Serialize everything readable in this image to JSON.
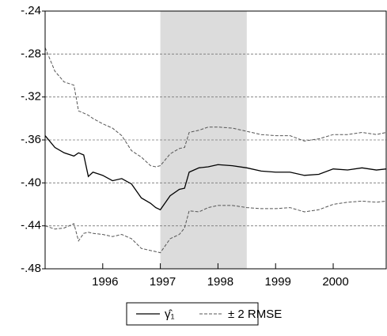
{
  "chart_data": {
    "type": "line",
    "x": [
      1995.0,
      1995.17,
      1995.33,
      1995.5,
      1995.58,
      1995.67,
      1995.75,
      1995.83,
      1996.0,
      1996.17,
      1996.33,
      1996.5,
      1996.67,
      1996.83,
      1996.92,
      1997.0,
      1997.17,
      1997.33,
      1997.42,
      1997.5,
      1997.67,
      1997.83,
      1998.0,
      1998.25,
      1998.5,
      1998.75,
      1999.0,
      1999.25,
      1999.5,
      1999.75,
      2000.0,
      2000.25,
      2000.5,
      2000.75,
      2000.92
    ],
    "series": [
      {
        "name": "γ̂₁",
        "color": "#000000",
        "dashed": false,
        "values": [
          -0.356,
          -0.367,
          -0.372,
          -0.375,
          -0.372,
          -0.374,
          -0.394,
          -0.39,
          -0.393,
          -0.398,
          -0.396,
          -0.401,
          -0.414,
          -0.419,
          -0.423,
          -0.425,
          -0.412,
          -0.406,
          -0.405,
          -0.39,
          -0.386,
          -0.385,
          -0.383,
          -0.384,
          -0.386,
          -0.389,
          -0.39,
          -0.39,
          -0.393,
          -0.392,
          -0.387,
          -0.388,
          -0.386,
          -0.388,
          -0.387
        ]
      },
      {
        "name": "± 2 RMSE",
        "color": "#555555",
        "dashed": true,
        "values": [
          -0.274,
          -0.296,
          -0.306,
          -0.309,
          -0.333,
          -0.335,
          -0.337,
          -0.34,
          -0.345,
          -0.349,
          -0.356,
          -0.37,
          -0.376,
          -0.384,
          -0.385,
          -0.384,
          -0.373,
          -0.368,
          -0.367,
          -0.353,
          -0.351,
          -0.348,
          -0.348,
          -0.349,
          -0.352,
          -0.355,
          -0.356,
          -0.356,
          -0.361,
          -0.359,
          -0.355,
          -0.355,
          -0.353,
          -0.355,
          -0.353
        ],
        "lower": [
          -0.44,
          -0.443,
          -0.442,
          -0.438,
          -0.454,
          -0.447,
          -0.446,
          -0.447,
          -0.448,
          -0.45,
          -0.448,
          -0.452,
          -0.461,
          -0.463,
          -0.464,
          -0.465,
          -0.452,
          -0.448,
          -0.442,
          -0.426,
          -0.427,
          -0.423,
          -0.421,
          -0.421,
          -0.423,
          -0.424,
          -0.424,
          -0.423,
          -0.427,
          -0.425,
          -0.42,
          -0.418,
          -0.417,
          -0.418,
          -0.417
        ]
      }
    ],
    "xlim": [
      1995.0,
      2000.92
    ],
    "xticks": [
      1996,
      1997,
      1998,
      1999,
      2000
    ],
    "ylim": [
      -0.48,
      -0.24
    ],
    "yticks": [
      {
        "value": -0.48,
        "label": "-.48"
      },
      {
        "value": -0.44,
        "label": "-.44"
      },
      {
        "value": -0.4,
        "label": "-.40"
      },
      {
        "value": -0.36,
        "label": "-.36"
      },
      {
        "value": -0.32,
        "label": "-.32"
      },
      {
        "value": -0.28,
        "label": "-.28"
      },
      {
        "value": -0.24,
        "label": "-.24"
      }
    ],
    "grid": true,
    "shade": [
      1997.0,
      1998.5
    ],
    "shade_color": "#dcdcdc",
    "legend": "bottom"
  }
}
